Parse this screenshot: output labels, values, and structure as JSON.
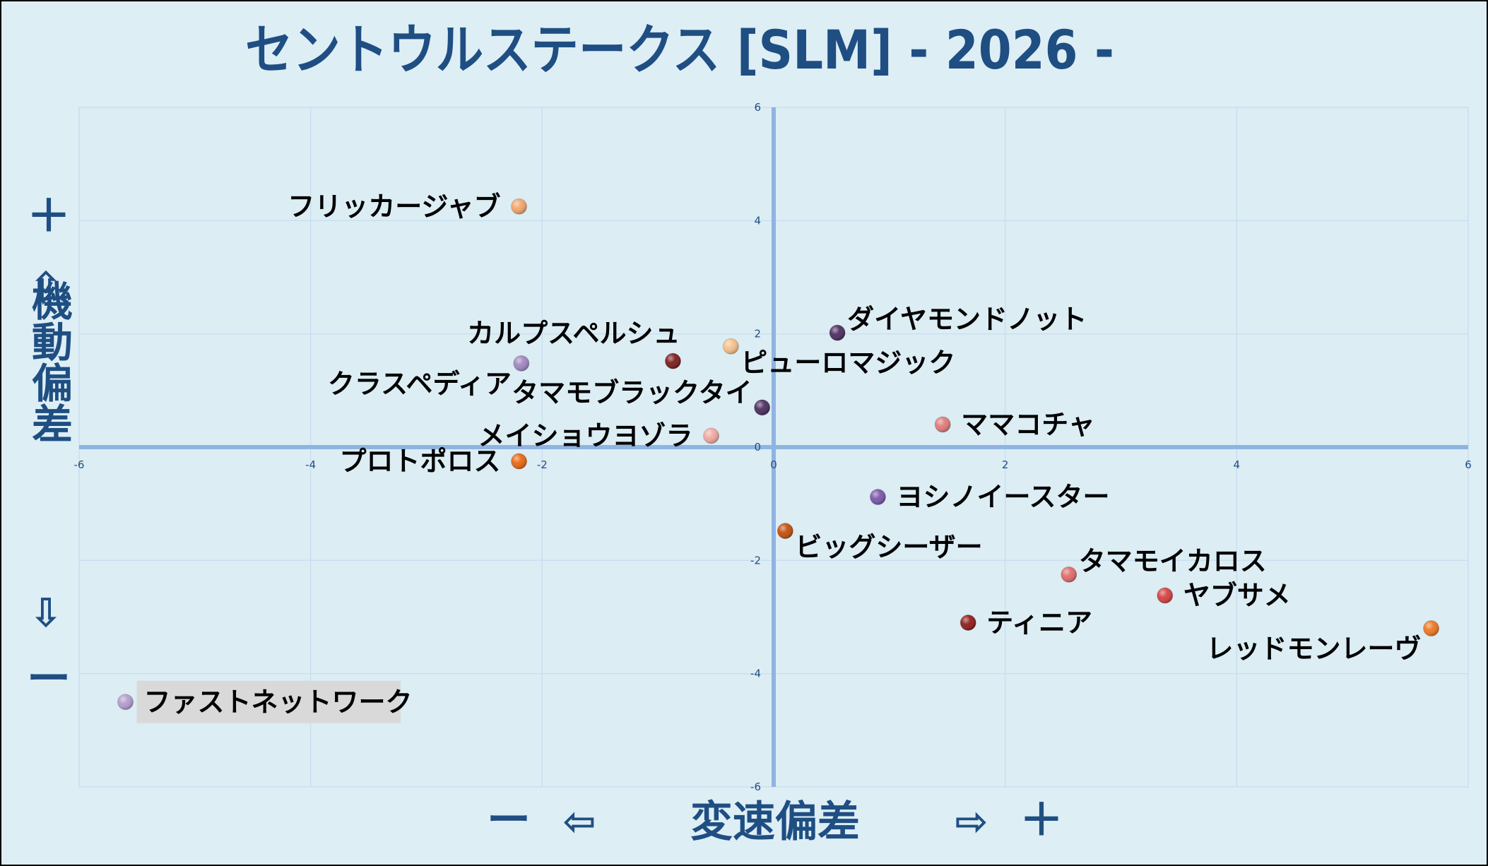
{
  "chart_data": {
    "type": "scatter",
    "title": "セントウルステークス [SLM]  - 2026 -",
    "xlabel": "変速偏差",
    "ylabel": "機動偏差",
    "x_axis_indicators": {
      "minus": "ー",
      "arrow_left": "⇦",
      "arrow_right": "⇨",
      "plus": "＋"
    },
    "y_axis_indicators": {
      "plus": "＋",
      "arrow_up": "⇧",
      "arrow_down": "⇩",
      "minus": "ー"
    },
    "xlim": [
      -6,
      6
    ],
    "ylim": [
      -6,
      6
    ],
    "xticks": [
      "-6",
      "-4",
      "-2",
      "0",
      "2",
      "4",
      "6"
    ],
    "yticks": [
      "6",
      "4",
      "2",
      "0",
      "-2",
      "-4",
      "-6"
    ],
    "grid": true,
    "points": [
      {
        "name": "フリッカージャブ",
        "x": -2.2,
        "y": 4.25,
        "color": "#f2a46a",
        "label_side": "left"
      },
      {
        "name": "カルプスペルシュ",
        "x": -0.87,
        "y": 1.52,
        "color": "#7b1a1a",
        "label_side": "top-left"
      },
      {
        "name": "クラスペディア",
        "x": -2.18,
        "y": 1.48,
        "color": "#9f86c0",
        "label_side": "left-below"
      },
      {
        "name": "ピューロマジック",
        "x": -0.37,
        "y": 1.78,
        "color": "#f5c08a",
        "label_side": "right-below"
      },
      {
        "name": "ダイヤモンドノット",
        "x": 0.55,
        "y": 2.02,
        "color": "#4a2c5e",
        "label_side": "right-above"
      },
      {
        "name": "タマモブラックタイ",
        "x": -0.1,
        "y": 0.7,
        "color": "#4a2c5e",
        "label_side": "left-above"
      },
      {
        "name": "メイショウヨゾラ",
        "x": -0.54,
        "y": 0.2,
        "color": "#f0a8a0",
        "label_side": "left"
      },
      {
        "name": "ママコチャ",
        "x": 1.46,
        "y": 0.4,
        "color": "#de7a78",
        "label_side": "right"
      },
      {
        "name": "プロトポロス",
        "x": -2.2,
        "y": -0.25,
        "color": "#e8650f",
        "label_side": "left"
      },
      {
        "name": "ヨシノイースター",
        "x": 0.9,
        "y": -0.88,
        "color": "#7a56a8",
        "label_side": "right"
      },
      {
        "name": "ビッグシーザー",
        "x": 0.1,
        "y": -1.48,
        "color": "#c24e0c",
        "label_side": "right-below"
      },
      {
        "name": "タマモイカロス",
        "x": 2.55,
        "y": -2.25,
        "color": "#de6a6a",
        "label_side": "right-above"
      },
      {
        "name": "ヤブサメ",
        "x": 3.38,
        "y": -2.62,
        "color": "#d44040",
        "label_side": "right"
      },
      {
        "name": "ティニア",
        "x": 1.68,
        "y": -3.1,
        "color": "#8e1a1a",
        "label_side": "right"
      },
      {
        "name": "レッドモンレーヴ",
        "x": 5.68,
        "y": -3.2,
        "color": "#ef7620",
        "label_side": "left-below"
      },
      {
        "name": "ファストネットワーク",
        "x": -5.6,
        "y": -4.5,
        "color": "#b39ccc",
        "label_side": "right-highlight"
      }
    ]
  },
  "colors": {
    "title": "#1f4e82",
    "axis_label": "#1f4e82",
    "tick": "#1f4e82",
    "zero_axis": "#8fb4e3",
    "grid": "#c6dcef",
    "plot_bg": "#dcedf4",
    "page_bg": "#ddeef5",
    "highlight_bg": "#d9d9d9",
    "label": "#000000"
  }
}
